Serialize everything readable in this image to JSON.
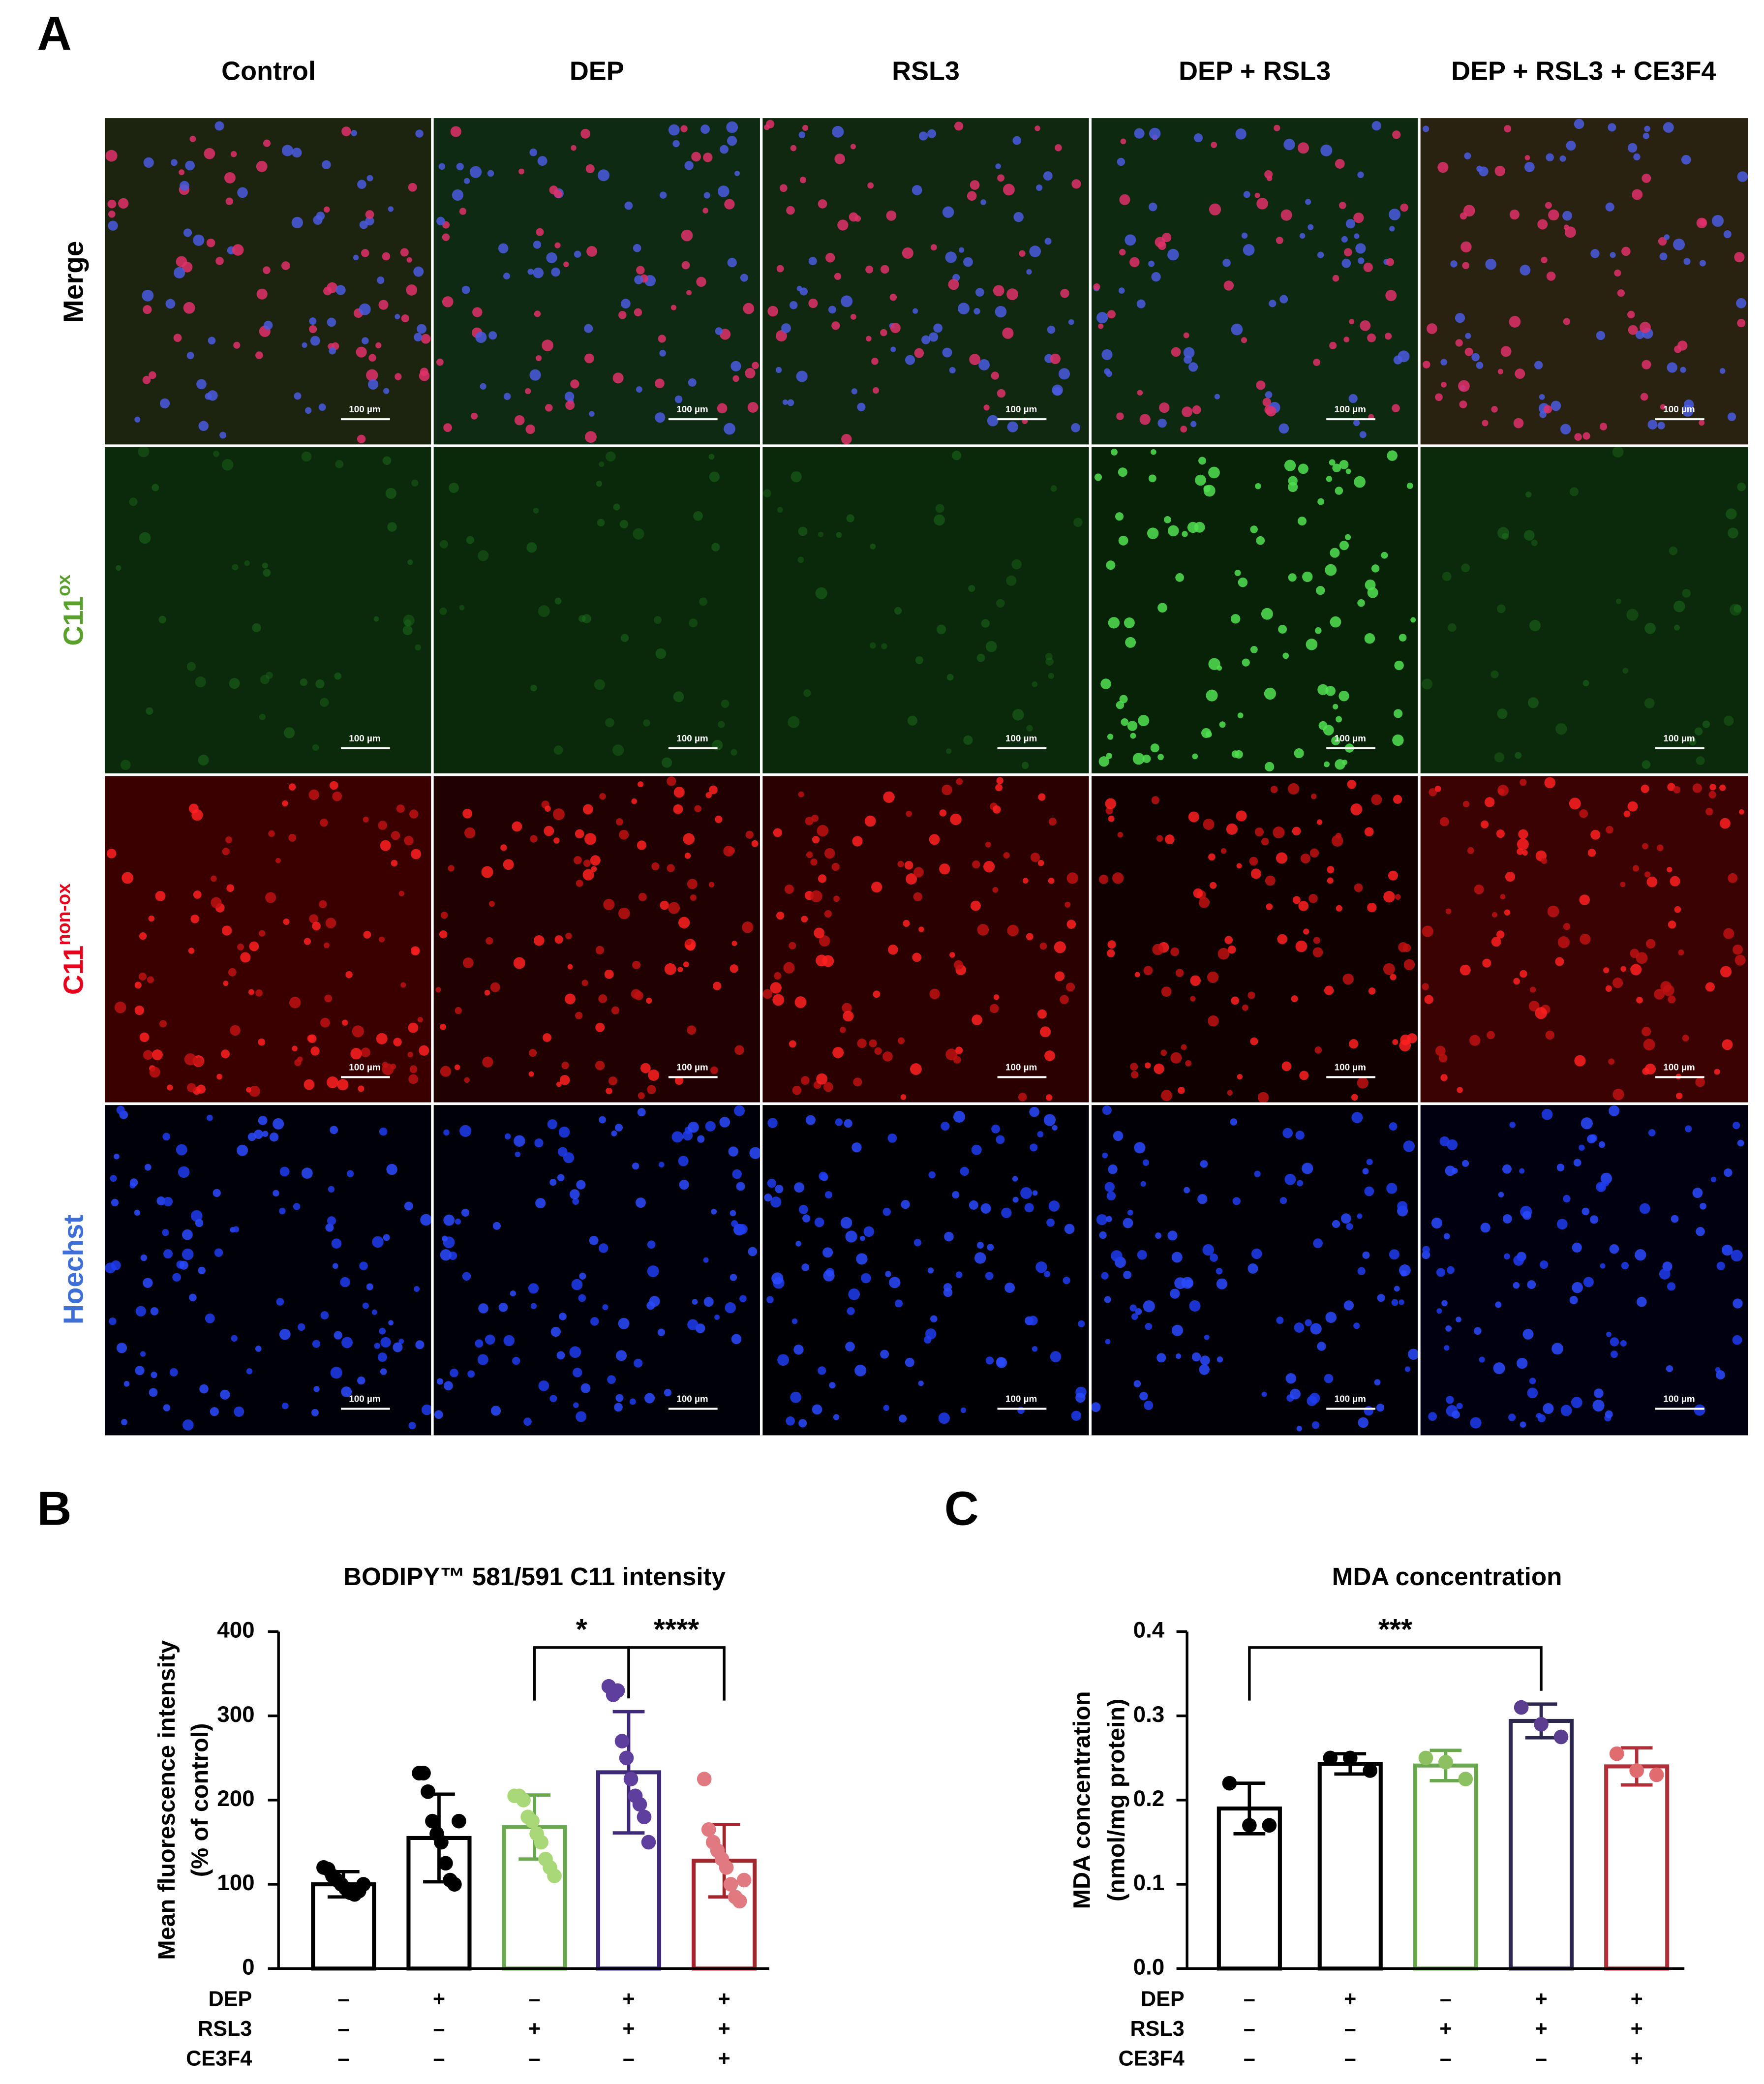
{
  "panel_labels": [
    "A",
    "B",
    "C"
  ],
  "micrographs": {
    "columns": [
      "Control",
      "DEP",
      "RSL3",
      "DEP + RSL3",
      "DEP + RSL3 + CE3F4"
    ],
    "rows": [
      {
        "label": "Merge",
        "color": "#000000"
      },
      {
        "label": "C11",
        "sup": "ox",
        "color": "#5aa02c"
      },
      {
        "label": "C11",
        "sup": "non-ox",
        "color": "#e8001c"
      },
      {
        "label": "Hoechst",
        "color": "#3d6fd6"
      }
    ],
    "scale_bar": "100 µm"
  },
  "chart_data": [
    {
      "type": "bar",
      "title": "BODIPY™ 581/591 C11 intensity",
      "ylabel": [
        "Mean fluorescence intensity",
        "(% of control)"
      ],
      "values": [
        100,
        155,
        168,
        233,
        128
      ],
      "errors": [
        15,
        52,
        38,
        72,
        43
      ],
      "colors": [
        "#000000",
        "#000000",
        "#6aa84f",
        "#3e2a78",
        "#a3252e"
      ],
      "point_colors": [
        "#000000",
        "#000000",
        "#a8d878",
        "#5e3f9e",
        "#e07a80"
      ],
      "points": [
        [
          120,
          118,
          110,
          105,
          100,
          95,
          90,
          88,
          92,
          100
        ],
        [
          232,
          232,
          210,
          175,
          160,
          150,
          125,
          105,
          100,
          175
        ],
        [
          205,
          205,
          200,
          180,
          175,
          160,
          150,
          130,
          120,
          110
        ],
        [
          335,
          325,
          330,
          270,
          250,
          225,
          205,
          195,
          180,
          150
        ],
        [
          225,
          165,
          150,
          140,
          130,
          120,
          100,
          85,
          80,
          105
        ]
      ],
      "ylim": [
        0,
        400
      ],
      "yticks": [
        0,
        100,
        200,
        300,
        400
      ],
      "significance": [
        {
          "between": [
            2,
            3
          ],
          "label": "*"
        },
        {
          "between": [
            3,
            4
          ],
          "label": "****"
        }
      ],
      "treatments": [
        {
          "name": "DEP",
          "signs": [
            "–",
            "+",
            "–",
            "+",
            "+"
          ]
        },
        {
          "name": "RSL3",
          "signs": [
            "–",
            "–",
            "+",
            "+",
            "+"
          ]
        },
        {
          "name": "CE3F4",
          "signs": [
            "–",
            "–",
            "–",
            "–",
            "+"
          ]
        }
      ]
    },
    {
      "type": "bar",
      "title": "MDA concentration",
      "ylabel": [
        "MDA concentration",
        "(nmol/mg protein)"
      ],
      "values": [
        0.19,
        0.243,
        0.241,
        0.294,
        0.24
      ],
      "errors": [
        0.03,
        0.012,
        0.018,
        0.02,
        0.022
      ],
      "colors": [
        "#000000",
        "#000000",
        "#6aa84f",
        "#2d2850",
        "#b0303a"
      ],
      "point_colors": [
        "#000000",
        "#000000",
        "#8cc060",
        "#5b3e8f",
        "#e06c70"
      ],
      "points": [
        [
          0.22,
          0.17,
          0.17
        ],
        [
          0.25,
          0.25,
          0.235
        ],
        [
          0.25,
          0.245,
          0.225
        ],
        [
          0.31,
          0.29,
          0.275
        ],
        [
          0.255,
          0.235,
          0.23
        ]
      ],
      "ylim": [
        0,
        0.4
      ],
      "yticks": [
        {
          "value": 0,
          "label": "0.0"
        },
        0.1,
        0.2,
        0.3,
        0.4
      ],
      "significance": [
        {
          "between": [
            0,
            3
          ],
          "label": "***"
        }
      ],
      "treatments": [
        {
          "name": "DEP",
          "signs": [
            "–",
            "+",
            "–",
            "+",
            "+"
          ]
        },
        {
          "name": "RSL3",
          "signs": [
            "–",
            "–",
            "+",
            "+",
            "+"
          ]
        },
        {
          "name": "CE3F4",
          "signs": [
            "–",
            "–",
            "–",
            "–",
            "+"
          ]
        }
      ]
    }
  ]
}
